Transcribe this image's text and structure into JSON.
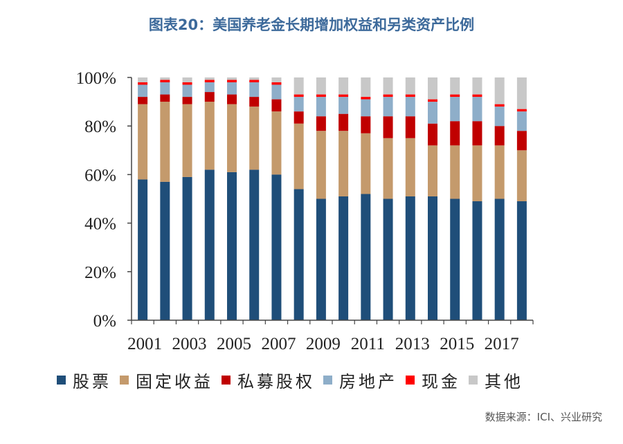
{
  "title": "图表20：美国养老金长期增加权益和另类资产比例",
  "source": "数据来源：ICI、兴业研究",
  "chart_data": {
    "type": "bar",
    "stacked": true,
    "title": "图表20：美国养老金长期增加权益和另类资产比例",
    "categories": [
      "2001",
      "2002",
      "2003",
      "2004",
      "2005",
      "2006",
      "2007",
      "2008",
      "2009",
      "2010",
      "2011",
      "2012",
      "2013",
      "2014",
      "2015",
      "2016",
      "2017",
      "2018"
    ],
    "x_tick_labels": [
      "2001",
      "2003",
      "2005",
      "2007",
      "2009",
      "2011",
      "2013",
      "2015",
      "2017"
    ],
    "ylim": [
      0,
      100
    ],
    "y_ticks": [
      0,
      20,
      40,
      60,
      80,
      100
    ],
    "y_tick_labels": [
      "0%",
      "20%",
      "40%",
      "60%",
      "80%",
      "100%"
    ],
    "legend_position": "bottom",
    "series": [
      {
        "name": "股票",
        "color": "#1f4e79",
        "values": [
          58,
          57,
          59,
          62,
          61,
          62,
          60,
          54,
          50,
          51,
          52,
          50,
          51,
          51,
          50,
          49,
          50,
          49
        ]
      },
      {
        "name": "固定收益",
        "color": "#c49a6c",
        "values": [
          31,
          33,
          30,
          28,
          28,
          26,
          26,
          27,
          28,
          27,
          25,
          25,
          24,
          21,
          22,
          23,
          22,
          21
        ]
      },
      {
        "name": "私募股权",
        "color": "#c00000",
        "values": [
          3,
          3,
          3,
          4,
          4,
          4,
          5,
          5,
          6,
          7,
          7,
          9,
          9,
          9,
          10,
          10,
          8,
          8
        ]
      },
      {
        "name": "房地产",
        "color": "#8eaec9",
        "values": [
          5,
          5,
          5,
          4,
          5,
          6,
          6,
          6,
          8,
          7,
          7,
          8,
          8,
          9,
          10,
          10,
          8,
          8
        ]
      },
      {
        "name": "现金",
        "color": "#ff0000",
        "values": [
          1,
          1,
          1,
          1,
          1,
          1,
          1,
          1,
          1,
          1,
          1,
          1,
          1,
          1,
          1,
          1,
          1,
          1
        ]
      },
      {
        "name": "其他",
        "color": "#c8c8c8",
        "values": [
          2,
          1,
          2,
          1,
          1,
          1,
          2,
          7,
          7,
          7,
          8,
          7,
          7,
          9,
          7,
          7,
          11,
          13
        ]
      }
    ]
  }
}
